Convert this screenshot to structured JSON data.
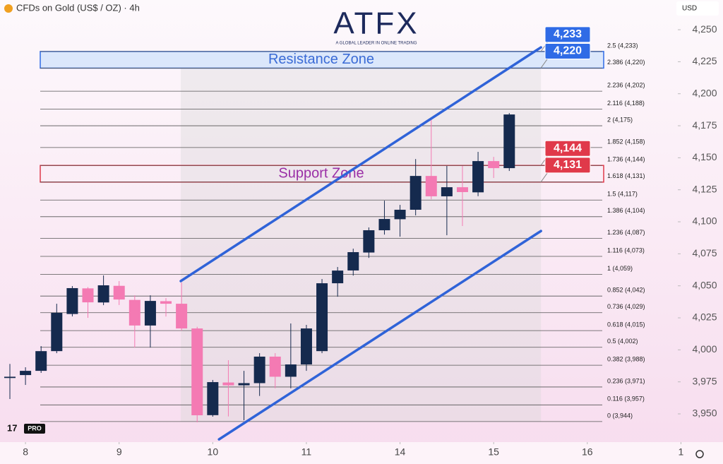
{
  "header": {
    "symbol": "CFDs on Gold (US$ / OZ) · 4h",
    "currency": "USD",
    "logo": "ATFX",
    "tagline": "A GLOBAL LEADER IN ONLINE TRADING",
    "badge": "PRO"
  },
  "chart_data": {
    "type": "candlestick",
    "up_color": "#152a4e",
    "down_color": "#f47ab3",
    "open": [
      3978,
      3980.3,
      3983.6,
      3999,
      4028,
      4048,
      4037,
      4050,
      4039,
      4019,
      4038,
      4036,
      4016.7,
      3949,
      3974.5,
      3972.3,
      3974,
      3994.7,
      3979,
      3988.6,
      3999,
      4052,
      4062,
      4076,
      4093.4,
      4102,
      4109.4,
      4135.8,
      4119.9,
      4127,
      4123,
      4147.4,
      4141.9
    ],
    "high": [
      3989,
      3986.4,
      4002.9,
      4036,
      4049.8,
      4049,
      4058.1,
      4053.7,
      4042.6,
      4042.6,
      4040.4,
      4052.6,
      4018,
      3976.5,
      3991.9,
      3983.6,
      3997.4,
      3997.4,
      4020.6,
      4019.5,
      4055.3,
      4064.7,
      4079,
      4095.6,
      4116.5,
      4113.2,
      4149,
      4179.4,
      4143.6,
      4143.6,
      4154.6,
      4150.7,
      4184.9
    ],
    "low": [
      3961.6,
      3972.6,
      3982,
      3997.4,
      4026.1,
      4025,
      4034.9,
      4035,
      4001.8,
      4001.8,
      4026,
      4015,
      3943.4,
      3947.8,
      3948,
      3945,
      3964,
      3970,
      3970,
      3983.6,
      3997.4,
      4041.5,
      4058,
      4071.8,
      4090,
      4088.4,
      4105,
      4117.6,
      4089.5,
      4096.7,
      4120,
      4134.2,
      4139.7
    ],
    "close": [
      3979,
      3983.6,
      3999,
      4028.9,
      4048.2,
      4037.1,
      4050.4,
      4039.3,
      4019,
      4038.2,
      4036,
      4016.7,
      3948.9,
      3974.8,
      3972.3,
      3974,
      3994.7,
      3979,
      3988.6,
      4016.7,
      4052,
      4061.9,
      4076.3,
      4093.4,
      4102.2,
      4109.4,
      4135.8,
      4119.9,
      4127,
      4123.2,
      4147.4,
      4141.9,
      4183.8
    ],
    "xlim": [
      -0.633,
      42.8
    ],
    "xticks": [
      {
        "value": 1,
        "label": "8"
      },
      {
        "value": 7,
        "label": "9"
      },
      {
        "value": 13,
        "label": "10"
      },
      {
        "value": 19,
        "label": "11"
      },
      {
        "value": 25,
        "label": "14"
      },
      {
        "value": 31,
        "label": "15"
      },
      {
        "value": 37,
        "label": "16"
      },
      {
        "value": 43,
        "label": "1"
      }
    ],
    "ylim": [
      3928.5,
      4273.2
    ],
    "yticks": [
      {
        "value": 3950,
        "label": "3,950"
      },
      {
        "value": 3975,
        "label": "3,975"
      },
      {
        "value": 4000,
        "label": "4,000"
      },
      {
        "value": 4025,
        "label": "4,025"
      },
      {
        "value": 4050,
        "label": "4,050"
      },
      {
        "value": 4075,
        "label": "4,075"
      },
      {
        "value": 4100,
        "label": "4,100"
      },
      {
        "value": 4125,
        "label": "4,125"
      },
      {
        "value": 4150,
        "label": "4,150"
      },
      {
        "value": 4175,
        "label": "4,175"
      },
      {
        "value": 4200,
        "label": "4,200"
      },
      {
        "value": 4225,
        "label": "4,225"
      },
      {
        "value": 4250,
        "label": "4,250"
      }
    ],
    "fib_levels": [
      {
        "label": "2.5 (4,233)",
        "value": 4233
      },
      {
        "label": "2.386 (4,220)",
        "value": 4220
      },
      {
        "label": "2.236 (4,202)",
        "value": 4202
      },
      {
        "label": "2.116 (4,188)",
        "value": 4188
      },
      {
        "label": "2 (4,175)",
        "value": 4175
      },
      {
        "label": "1.852 (4,158)",
        "value": 4158
      },
      {
        "label": "1.736 (4,144)",
        "value": 4144
      },
      {
        "label": "1.618 (4,131)",
        "value": 4131
      },
      {
        "label": "1.5 (4,117)",
        "value": 4117
      },
      {
        "label": "1.386 (4,104)",
        "value": 4104
      },
      {
        "label": "1.236 (4,087)",
        "value": 4087
      },
      {
        "label": "1.116 (4,073)",
        "value": 4073
      },
      {
        "label": "1 (4,059)",
        "value": 4059
      },
      {
        "label": "0.852 (4,042)",
        "value": 4042
      },
      {
        "label": "0.736 (4,029)",
        "value": 4029
      },
      {
        "label": "0.618 (4,015)",
        "value": 4015
      },
      {
        "label": "0.5 (4,002)",
        "value": 4002
      },
      {
        "label": "0.382 (3,988)",
        "value": 3988
      },
      {
        "label": "0.236 (3,971)",
        "value": 3971
      },
      {
        "label": "0.116 (3,957)",
        "value": 3957
      },
      {
        "label": "0 (3,944)",
        "value": 3944
      }
    ],
    "zones": [
      {
        "label": "Resistance Zone",
        "high": 4233,
        "low": 4220,
        "high_label": "4,233",
        "low_label": "4,220",
        "color": "#2f6be6",
        "fill": "#dbe7fb",
        "text_color": "#3a6bd6"
      },
      {
        "label": "Support Zone",
        "high": 4144,
        "low": 4131,
        "high_label": "4,144",
        "low_label": "4,131",
        "color": "#e0394a",
        "fill": "none",
        "text_color": "#9a2fa6"
      }
    ],
    "channel": {
      "color": "#2f63d8",
      "upper": {
        "x": [
          10.95,
          34.03
        ],
        "y": [
          4053.7,
          4236.2
        ]
      },
      "lower": {
        "x": [
          13.4,
          34.03
        ],
        "y": [
          3930.1,
          4092.8
        ]
      }
    }
  }
}
